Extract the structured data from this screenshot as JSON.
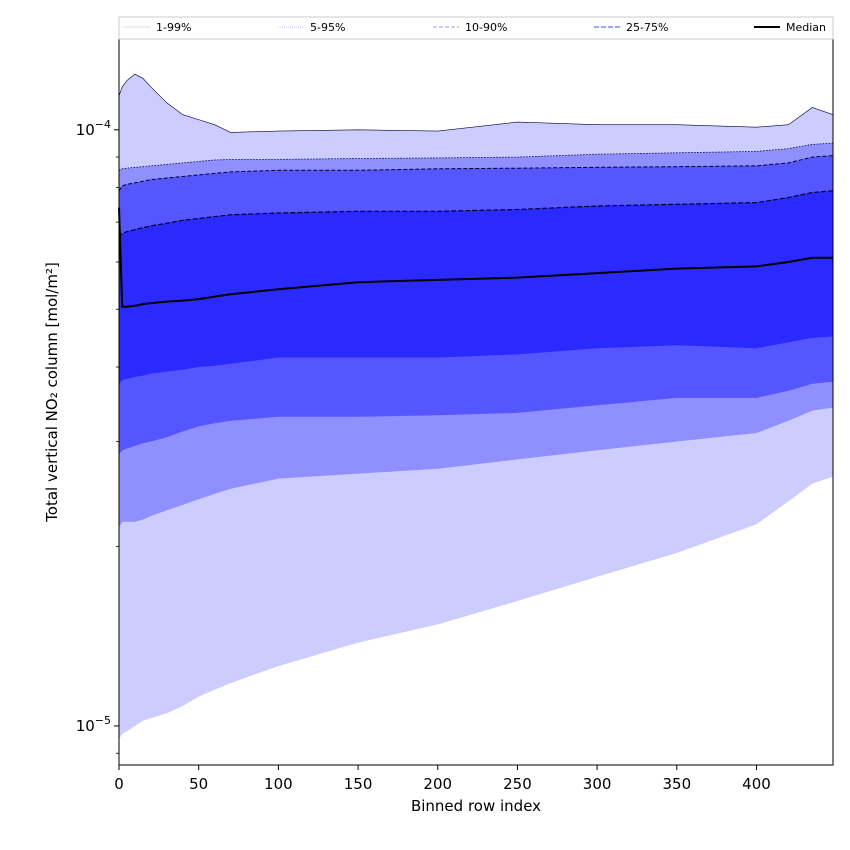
{
  "chart_data": {
    "type": "area",
    "title": "",
    "xlabel": "Binned row index",
    "ylabel": "Total vertical NO₂ column [mol/m²]",
    "xlim": [
      0,
      448
    ],
    "ylim": [
      8.6e-06,
      0.000142
    ],
    "y_scale": "log",
    "x_ticks": [
      0,
      50,
      100,
      150,
      200,
      250,
      300,
      350,
      400
    ],
    "x_tick_labels": [
      "0",
      "50",
      "100",
      "150",
      "200",
      "250",
      "300",
      "350",
      "400"
    ],
    "y_ticks": [
      1e-05,
      0.0001
    ],
    "y_tick_labels": [
      {
        "base": "10",
        "exp": "−5"
      },
      {
        "base": "10",
        "exp": "−4"
      }
    ],
    "grid": false,
    "legend_position": "top",
    "legend": [
      {
        "label": "1-99%",
        "color": "#ccccff",
        "style": "solid"
      },
      {
        "label": "5-95%",
        "color": "#b3b3e6",
        "style": "dotted"
      },
      {
        "label": "10-90%",
        "color": "#9a9aee",
        "style": "dashed"
      },
      {
        "label": "25-75%",
        "color": "#6a6af0",
        "style": "dashed"
      },
      {
        "label": "Median",
        "color": "#000000",
        "style": "solid"
      }
    ],
    "fill_colors": [
      "#ccccff",
      "#8f8fff",
      "#5656ff",
      "#2a2aff"
    ],
    "x": [
      0,
      2,
      5,
      10,
      15,
      20,
      30,
      40,
      50,
      60,
      70,
      100,
      150,
      200,
      250,
      300,
      350,
      400,
      420,
      435,
      448
    ],
    "series": [
      {
        "name": "1-99%",
        "lower": [
          9.5e-06,
          9.7e-06,
          9.8e-06,
          1e-05,
          1.02e-05,
          1.03e-05,
          1.05e-05,
          1.08e-05,
          1.12e-05,
          1.15e-05,
          1.18e-05,
          1.26e-05,
          1.38e-05,
          1.48e-05,
          1.62e-05,
          1.78e-05,
          1.95e-05,
          2.18e-05,
          2.38e-05,
          2.55e-05,
          2.62e-05
        ],
        "upper": [
          0.000114,
          0.000118,
          0.000121,
          0.000124,
          0.000122,
          0.000118,
          0.000111,
          0.000106,
          0.000104,
          0.000102,
          9.9e-05,
          9.95e-05,
          0.0001,
          9.95e-05,
          0.000103,
          0.000102,
          0.000102,
          0.000101,
          0.000102,
          0.000109,
          0.000106
        ]
      },
      {
        "name": "5-95%",
        "lower": [
          2.15e-05,
          2.2e-05,
          2.2e-05,
          2.2e-05,
          2.22e-05,
          2.25e-05,
          2.3e-05,
          2.35e-05,
          2.4e-05,
          2.45e-05,
          2.5e-05,
          2.6e-05,
          2.65e-05,
          2.7e-05,
          2.8e-05,
          2.9e-05,
          3e-05,
          3.1e-05,
          3.25e-05,
          3.38e-05,
          3.42e-05
        ],
        "upper": [
          8.55e-05,
          8.6e-05,
          8.62e-05,
          8.65e-05,
          8.67e-05,
          8.7e-05,
          8.75e-05,
          8.8e-05,
          8.85e-05,
          8.9e-05,
          8.92e-05,
          8.92e-05,
          8.95e-05,
          8.97e-05,
          9e-05,
          9.1e-05,
          9.15e-05,
          9.2e-05,
          9.3e-05,
          9.45e-05,
          9.5e-05
        ]
      },
      {
        "name": "10-90%",
        "lower": [
          2.85e-05,
          2.9e-05,
          2.92e-05,
          2.95e-05,
          2.98e-05,
          3e-05,
          3.05e-05,
          3.12e-05,
          3.18e-05,
          3.22e-05,
          3.25e-05,
          3.3e-05,
          3.3e-05,
          3.32e-05,
          3.35e-05,
          3.45e-05,
          3.55e-05,
          3.55e-05,
          3.65e-05,
          3.75e-05,
          3.78e-05
        ],
        "upper": [
          7.9e-05,
          8.05e-05,
          8.1e-05,
          8.15e-05,
          8.2e-05,
          8.25e-05,
          8.3e-05,
          8.35e-05,
          8.4e-05,
          8.45e-05,
          8.5e-05,
          8.55e-05,
          8.55e-05,
          8.6e-05,
          8.62e-05,
          8.65e-05,
          8.67e-05,
          8.7e-05,
          8.8e-05,
          9e-05,
          9.05e-05
        ]
      },
      {
        "name": "25-75%",
        "lower": [
          3.75e-05,
          3.8e-05,
          3.82e-05,
          3.85e-05,
          3.87e-05,
          3.9e-05,
          3.93e-05,
          3.96e-05,
          4e-05,
          4.02e-05,
          4.05e-05,
          4.15e-05,
          4.15e-05,
          4.15e-05,
          4.2e-05,
          4.3e-05,
          4.35e-05,
          4.3e-05,
          4.4e-05,
          4.48e-05,
          4.5e-05
        ],
        "upper": [
          6.6e-05,
          6.7e-05,
          6.75e-05,
          6.8e-05,
          6.85e-05,
          6.9e-05,
          6.97e-05,
          7.05e-05,
          7.1e-05,
          7.15e-05,
          7.2e-05,
          7.25e-05,
          7.3e-05,
          7.3e-05,
          7.35e-05,
          7.45e-05,
          7.5e-05,
          7.55e-05,
          7.7e-05,
          7.85e-05,
          7.9e-05
        ]
      },
      {
        "name": "Median",
        "values": [
          7.4e-05,
          5.05e-05,
          5.05e-05,
          5.07e-05,
          5.1e-05,
          5.12e-05,
          5.15e-05,
          5.17e-05,
          5.2e-05,
          5.25e-05,
          5.3e-05,
          5.4e-05,
          5.55e-05,
          5.6e-05,
          5.65e-05,
          5.75e-05,
          5.85e-05,
          5.9e-05,
          6e-05,
          6.1e-05,
          6.1e-05
        ]
      }
    ]
  }
}
